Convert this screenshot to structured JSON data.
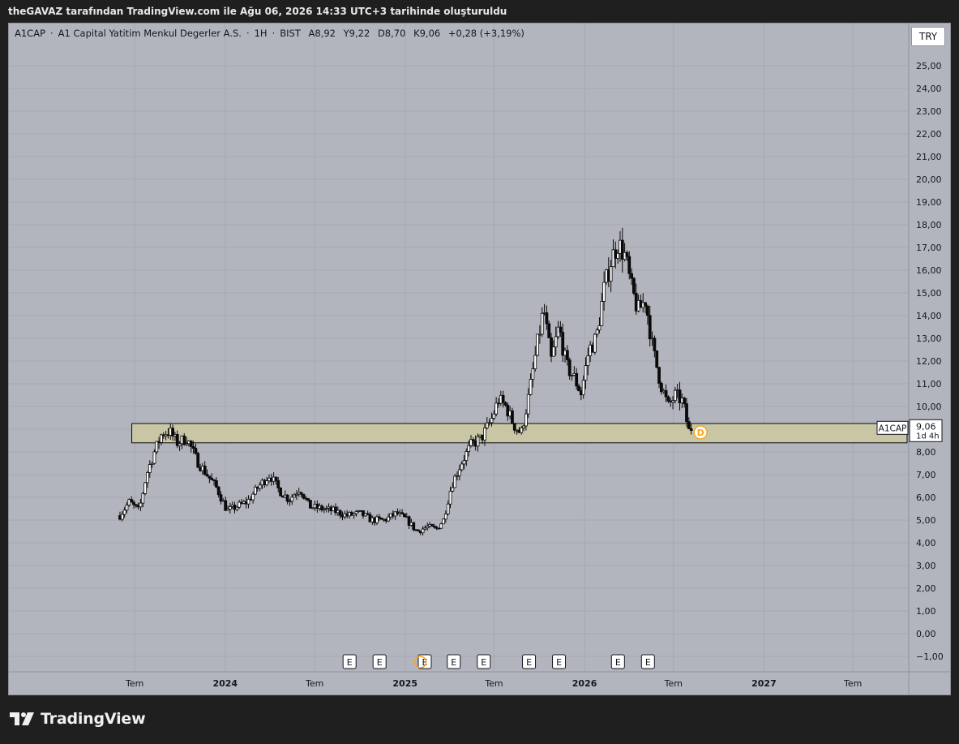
{
  "header": {
    "caption": "theGAVAZ tarafından TradingView.com ile Ağu 06, 2026 14:33 UTC+3 tarihinde oluşturuldu"
  },
  "legend": {
    "symbol": "A1CAP",
    "name": "A1 Capital Yatitim Menkul Degerler A.S.",
    "interval": "1H",
    "exchange": "BIST",
    "open": "A8,92",
    "high": "Y9,22",
    "low": "D8,70",
    "close": "K9,06",
    "change": "+0,28 (+3,19%)",
    "separator": "·"
  },
  "currency_button": "TRY",
  "price_tag": {
    "symbol": "A1CAP",
    "price": "9,06",
    "countdown": "1d 4h"
  },
  "dividend_marker": "D",
  "earnings_label": "E",
  "brand": {
    "name": "TradingView"
  },
  "colors": {
    "background": "#b2b5be",
    "candle": "#0a0a0a",
    "zone_fill": "#c9c6a6",
    "zone_border": "#0a0a0a",
    "grid": "#a6a9b1",
    "dividend": "#f5a623"
  },
  "chart_data": {
    "type": "candlestick",
    "title": "",
    "ylim": [
      -1.5,
      26
    ],
    "y_ticks": [
      "25,00",
      "24,00",
      "23,00",
      "22,00",
      "21,00",
      "20,00",
      "19,00",
      "18,00",
      "17,00",
      "16,00",
      "15,00",
      "14,00",
      "13,00",
      "12,00",
      "11,00",
      "10,00",
      "9,00",
      "8,00",
      "7,00",
      "6,00",
      "5,00",
      "4,00",
      "3,00",
      "2,00",
      "1,00",
      "0,00",
      "−1,00"
    ],
    "x_ticks": [
      "Tem",
      "2024",
      "Tem",
      "2025",
      "Tem",
      "2026",
      "Tem",
      "2027",
      "Tem"
    ],
    "time_range": [
      "2023-05",
      "2027-11"
    ],
    "support_zone": {
      "from": "2023-06",
      "to": "2027-11",
      "low": 8.4,
      "high": 9.25
    },
    "earnings_events": [
      "2024-09",
      "2024-11",
      "2025-02",
      "2025-04",
      "2025-06",
      "2025-09",
      "2025-11",
      "2026-03",
      "2026-05"
    ],
    "dividend_events": [
      "2025-02",
      "2026-08"
    ],
    "price_path": [
      [
        "2023-06-01",
        5.2
      ],
      [
        "2023-06-20",
        5.8
      ],
      [
        "2023-07-10",
        5.4
      ],
      [
        "2023-07-25",
        7.0
      ],
      [
        "2023-08-10",
        8.0
      ],
      [
        "2023-08-25",
        8.8
      ],
      [
        "2023-09-10",
        8.9
      ],
      [
        "2023-09-25",
        8.4
      ],
      [
        "2023-10-15",
        8.6
      ],
      [
        "2023-11-05",
        7.6
      ],
      [
        "2023-11-25",
        7.0
      ],
      [
        "2023-12-15",
        6.4
      ],
      [
        "2024-01-05",
        5.4
      ],
      [
        "2024-01-25",
        5.6
      ],
      [
        "2024-02-15",
        5.8
      ],
      [
        "2024-03-10",
        6.5
      ],
      [
        "2024-04-01",
        7.0
      ],
      [
        "2024-04-20",
        6.3
      ],
      [
        "2024-05-10",
        5.9
      ],
      [
        "2024-06-01",
        6.4
      ],
      [
        "2024-06-20",
        5.6
      ],
      [
        "2024-07-15",
        5.5
      ],
      [
        "2024-08-10",
        5.4
      ],
      [
        "2024-09-05",
        5.2
      ],
      [
        "2024-10-01",
        5.3
      ],
      [
        "2024-10-25",
        5.0
      ],
      [
        "2024-11-20",
        5.0
      ],
      [
        "2024-12-15",
        5.3
      ],
      [
        "2025-01-05",
        5.0
      ],
      [
        "2025-01-25",
        4.5
      ],
      [
        "2025-02-15",
        4.7
      ],
      [
        "2025-03-05",
        4.6
      ],
      [
        "2025-03-20",
        5.0
      ],
      [
        "2025-04-05",
        6.5
      ],
      [
        "2025-04-25",
        7.5
      ],
      [
        "2025-05-15",
        8.3
      ],
      [
        "2025-06-05",
        8.6
      ],
      [
        "2025-06-25",
        9.4
      ],
      [
        "2025-07-10",
        10.3
      ],
      [
        "2025-07-25",
        10.0
      ],
      [
        "2025-08-10",
        9.2
      ],
      [
        "2025-08-25",
        8.8
      ],
      [
        "2025-09-10",
        10.5
      ],
      [
        "2025-09-25",
        12.5
      ],
      [
        "2025-10-10",
        14.3
      ],
      [
        "2025-10-25",
        12.0
      ],
      [
        "2025-11-10",
        13.5
      ],
      [
        "2025-11-25",
        11.8
      ],
      [
        "2025-12-10",
        11.3
      ],
      [
        "2025-12-25",
        10.6
      ],
      [
        "2026-01-10",
        12.5
      ],
      [
        "2026-01-25",
        13.0
      ],
      [
        "2026-02-10",
        15.2
      ],
      [
        "2026-02-25",
        16.5
      ],
      [
        "2026-03-10",
        17.2
      ],
      [
        "2026-03-25",
        16.6
      ],
      [
        "2026-04-05",
        15.3
      ],
      [
        "2026-04-20",
        14.2
      ],
      [
        "2026-05-05",
        14.7
      ],
      [
        "2026-05-20",
        12.5
      ],
      [
        "2026-06-05",
        11.0
      ],
      [
        "2026-06-20",
        10.0
      ],
      [
        "2026-07-05",
        10.5
      ],
      [
        "2026-07-20",
        10.2
      ],
      [
        "2026-08-01",
        8.9
      ],
      [
        "2026-08-06",
        9.06
      ]
    ]
  }
}
